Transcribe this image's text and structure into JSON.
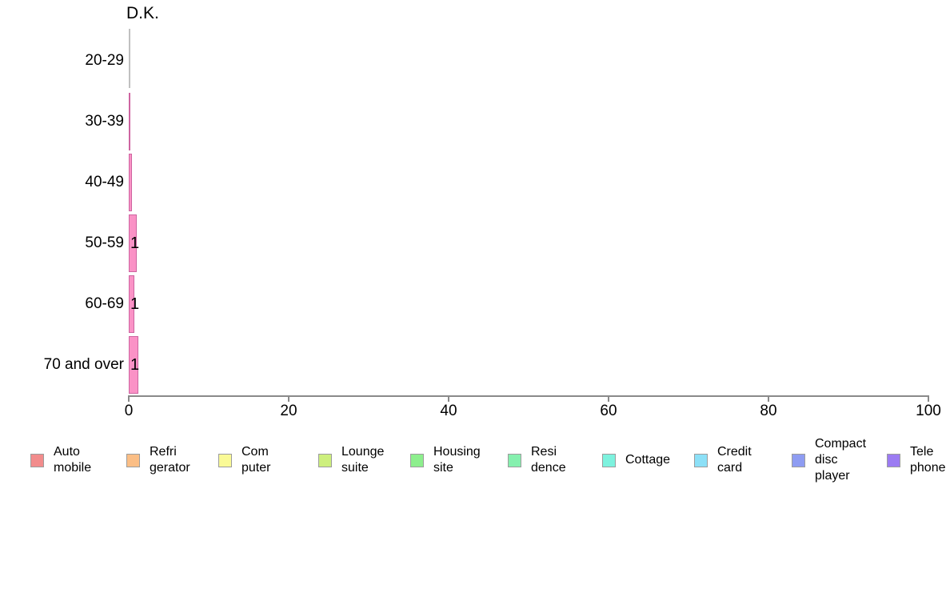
{
  "chart_data": {
    "type": "bar",
    "orientation": "horizontal",
    "title": "D.K.",
    "categories": [
      "20-29",
      "30-39",
      "40-49",
      "50-59",
      "60-69",
      "70 and over"
    ],
    "values": [
      0,
      0.1,
      0.4,
      1,
      0.7,
      1.2
    ],
    "bar_labels": [
      "",
      "",
      "",
      "1",
      "1",
      "1"
    ],
    "xlabel": "",
    "ylabel": "",
    "xlim": [
      0,
      100
    ],
    "x_ticks": [
      "0",
      "20",
      "40",
      "60",
      "80",
      "100"
    ],
    "x_tick_values": [
      0,
      20,
      40,
      60,
      80,
      100
    ],
    "grid": false,
    "bar_fill_color": "#FA92C6",
    "bar_border_color": "#CE64A0",
    "x_axis_color": "#8a8a8a",
    "y_axis_color": "#c0c0c0",
    "legend_position": "bottom",
    "legend": {
      "items": [
        {
          "name": "automobile",
          "label_lines": [
            "Auto",
            "mobile"
          ],
          "color": "#F28C8C"
        },
        {
          "name": "refrigerator",
          "label_lines": [
            "Refri",
            "gerator"
          ],
          "color": "#FBBE85"
        },
        {
          "name": "computer",
          "label_lines": [
            "Com",
            "puter"
          ],
          "color": "#FAFA96"
        },
        {
          "name": "lounge-suite",
          "label_lines": [
            "Lounge",
            "suite"
          ],
          "color": "#CDEF7D"
        },
        {
          "name": "housing-site",
          "label_lines": [
            "Housing",
            "site"
          ],
          "color": "#8DEF8D"
        },
        {
          "name": "residence",
          "label_lines": [
            "Resi",
            "dence"
          ],
          "color": "#85F0AE"
        },
        {
          "name": "cottage",
          "label_lines": [
            "Cottage"
          ],
          "color": "#7DF2DE"
        },
        {
          "name": "credit-card",
          "label_lines": [
            "Credit",
            "card"
          ],
          "color": "#8CE0F7"
        },
        {
          "name": "compact-disc-player",
          "label_lines": [
            "Compact",
            "disc",
            "player"
          ],
          "color": "#8E9CF2"
        },
        {
          "name": "telephone",
          "label_lines": [
            "Tele",
            "phone"
          ],
          "color": "#9B7BF2"
        }
      ]
    }
  }
}
